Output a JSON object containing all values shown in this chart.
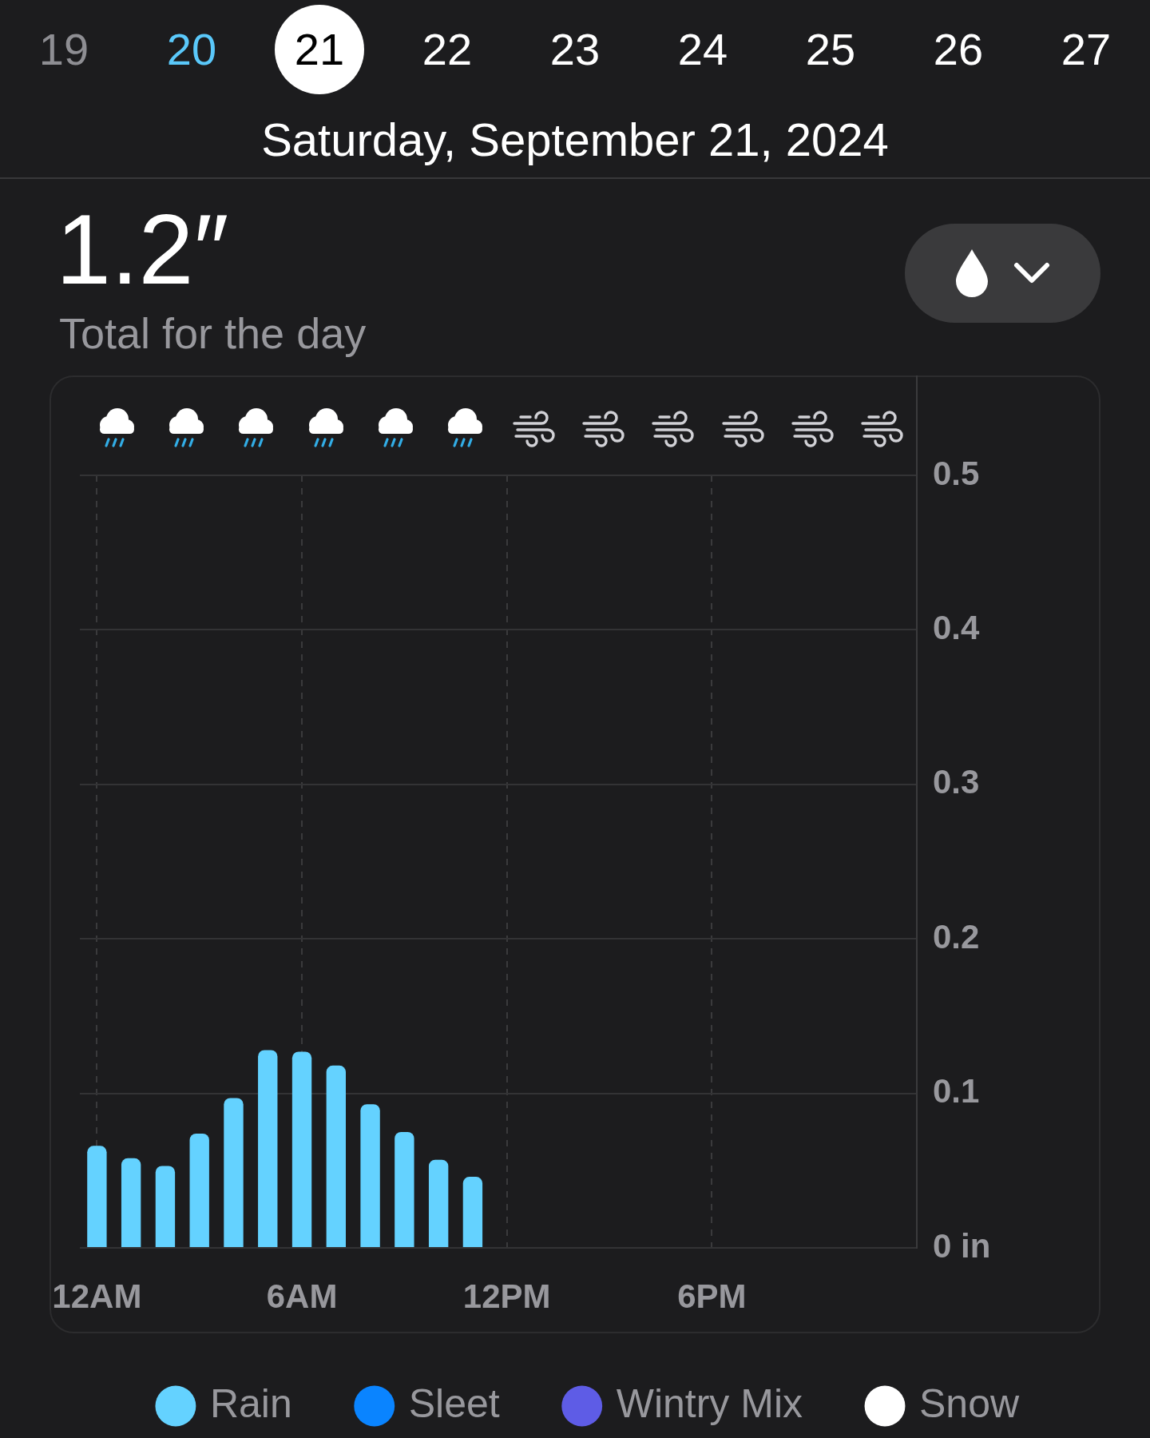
{
  "chart_data": {
    "type": "bar",
    "title": "1.2″",
    "subtitle": "Total for the day",
    "annotations": [
      "19",
      "20",
      "21",
      "22",
      "23",
      "24",
      "25",
      "26",
      "27",
      "Saturday, September 21, 2024"
    ],
    "x": [
      "2024-09-21T00:00",
      "2024-09-21T01:00",
      "2024-09-21T02:00",
      "2024-09-21T03:00",
      "2024-09-21T04:00",
      "2024-09-21T05:00",
      "2024-09-21T06:00",
      "2024-09-21T07:00",
      "2024-09-21T08:00",
      "2024-09-21T09:00",
      "2024-09-21T10:00",
      "2024-09-21T11:00"
    ],
    "xlim": [
      "2024-09-20T23:30",
      "2024-09-22T00:00"
    ],
    "xticks": [
      {
        "value": "2024-09-21T00:00",
        "label": "12AM"
      },
      {
        "value": "2024-09-21T06:00",
        "label": "6AM"
      },
      {
        "value": "2024-09-21T12:00",
        "label": "12PM"
      },
      {
        "value": "2024-09-21T18:00",
        "label": "6PM"
      }
    ],
    "ylim": [
      0,
      0.5
    ],
    "yticks": [
      {
        "value": 0,
        "label": "0 in"
      },
      0.1,
      0.2,
      0.3,
      0.4,
      0.5
    ],
    "stacked": true,
    "grid": true,
    "legend": "bottom",
    "series": [
      {
        "name": "Rain",
        "color": "#64d2ff",
        "values": [
          0.066,
          0.058,
          0.053,
          0.074,
          0.097,
          0.128,
          0.127,
          0.118,
          0.093,
          0.075,
          0.057,
          0.046
        ]
      },
      {
        "name": "Sleet",
        "color": "#0a84ff",
        "values": [
          null,
          null,
          null,
          null,
          null,
          null,
          null,
          null,
          null,
          null,
          null,
          null
        ]
      },
      {
        "name": "Wintry Mix",
        "color": "#5e5ce6",
        "values": [
          null,
          null,
          null,
          null,
          null,
          null,
          null,
          null,
          null,
          null,
          null,
          null
        ]
      },
      {
        "name": "Snow",
        "color": "#ffffff",
        "values": [
          null,
          null,
          null,
          null,
          null,
          null,
          null,
          null,
          null,
          null,
          null,
          null
        ]
      }
    ]
  }
}
